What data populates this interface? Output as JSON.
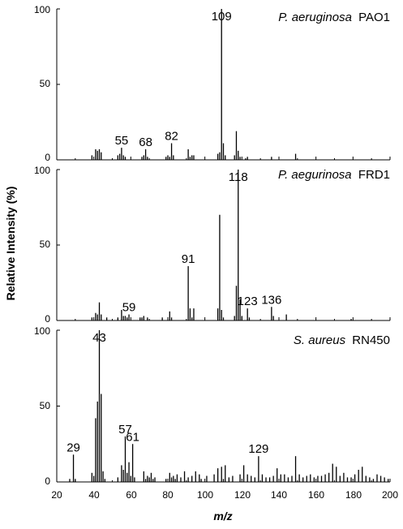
{
  "chart_data": {
    "type": "bar",
    "xlabel": "m/z",
    "ylabel": "Relative Intensity (%)",
    "xlim": [
      20,
      200
    ],
    "ylim": [
      0,
      100
    ],
    "x_ticks": [
      "20",
      "40",
      "60",
      "80",
      "100",
      "120",
      "140",
      "160",
      "180",
      "200"
    ],
    "y_ticks": [
      "0",
      "50",
      "100"
    ],
    "grid": false,
    "panels": [
      {
        "title_italic": "P. aeruginosa",
        "title_plain": "PAO1",
        "peak_labels": [
          {
            "text": "55",
            "x": 55,
            "y": 8
          },
          {
            "text": "68",
            "x": 68,
            "y": 7
          },
          {
            "text": "82",
            "x": 82,
            "y": 11
          },
          {
            "text": "109",
            "x": 109,
            "y": 100
          }
        ],
        "peaks": [
          [
            39,
            3
          ],
          [
            41,
            7
          ],
          [
            42,
            6
          ],
          [
            43,
            7
          ],
          [
            44,
            5
          ],
          [
            53,
            3
          ],
          [
            54,
            4
          ],
          [
            55,
            8
          ],
          [
            56,
            3
          ],
          [
            57,
            2
          ],
          [
            66,
            2
          ],
          [
            67,
            3
          ],
          [
            68,
            7
          ],
          [
            69,
            2
          ],
          [
            79,
            2
          ],
          [
            80,
            3
          ],
          [
            81,
            2
          ],
          [
            82,
            11
          ],
          [
            83,
            3
          ],
          [
            91,
            7
          ],
          [
            92,
            2
          ],
          [
            93,
            3
          ],
          [
            94,
            3
          ],
          [
            107,
            4
          ],
          [
            108,
            5
          ],
          [
            109,
            100
          ],
          [
            110,
            11
          ],
          [
            111,
            3
          ],
          [
            116,
            3
          ],
          [
            117,
            19
          ],
          [
            118,
            6
          ],
          [
            119,
            2
          ],
          [
            122,
            1
          ],
          [
            123,
            2
          ],
          [
            136,
            2
          ],
          [
            149,
            4
          ]
        ]
      },
      {
        "title_italic": "P. aegurinosa",
        "title_plain": "FRD1",
        "peak_labels": [
          {
            "text": "59",
            "x": 59,
            "y": 4
          },
          {
            "text": "91",
            "x": 91,
            "y": 36
          },
          {
            "text": "118",
            "x": 118,
            "y": 100
          },
          {
            "text": "123",
            "x": 123,
            "y": 8
          },
          {
            "text": "136",
            "x": 136,
            "y": 9
          }
        ],
        "peaks": [
          [
            39,
            2
          ],
          [
            41,
            5
          ],
          [
            42,
            4
          ],
          [
            43,
            12
          ],
          [
            44,
            4
          ],
          [
            47,
            2
          ],
          [
            53,
            2
          ],
          [
            55,
            7
          ],
          [
            56,
            3
          ],
          [
            57,
            3
          ],
          [
            58,
            2
          ],
          [
            59,
            4
          ],
          [
            65,
            2
          ],
          [
            66,
            2
          ],
          [
            67,
            3
          ],
          [
            69,
            2
          ],
          [
            77,
            2
          ],
          [
            81,
            6
          ],
          [
            82,
            2
          ],
          [
            91,
            36
          ],
          [
            92,
            8
          ],
          [
            93,
            2
          ],
          [
            94,
            8
          ],
          [
            107,
            8
          ],
          [
            108,
            70
          ],
          [
            109,
            7
          ],
          [
            110,
            2
          ],
          [
            116,
            3
          ],
          [
            117,
            23
          ],
          [
            118,
            100
          ],
          [
            119,
            14
          ],
          [
            120,
            3
          ],
          [
            123,
            8
          ],
          [
            124,
            2
          ],
          [
            136,
            9
          ],
          [
            137,
            3
          ],
          [
            144,
            4
          ],
          [
            179,
            1
          ]
        ]
      },
      {
        "title_italic": "S. aureus",
        "title_plain": "RN450",
        "peak_labels": [
          {
            "text": "29",
            "x": 29,
            "y": 18
          },
          {
            "text": "43",
            "x": 43,
            "y": 100
          },
          {
            "text": "57",
            "x": 57,
            "y": 30
          },
          {
            "text": "61",
            "x": 61,
            "y": 25
          },
          {
            "text": "129",
            "x": 129,
            "y": 17
          }
        ],
        "peaks": [
          [
            27,
            2
          ],
          [
            29,
            18
          ],
          [
            30,
            2
          ],
          [
            39,
            6
          ],
          [
            40,
            4
          ],
          [
            41,
            42
          ],
          [
            42,
            53
          ],
          [
            43,
            100
          ],
          [
            44,
            58
          ],
          [
            45,
            7
          ],
          [
            46,
            2
          ],
          [
            53,
            3
          ],
          [
            55,
            11
          ],
          [
            56,
            8
          ],
          [
            57,
            30
          ],
          [
            58,
            6
          ],
          [
            59,
            13
          ],
          [
            60,
            4
          ],
          [
            61,
            25
          ],
          [
            62,
            3
          ],
          [
            67,
            7
          ],
          [
            68,
            2
          ],
          [
            69,
            4
          ],
          [
            70,
            3
          ],
          [
            71,
            6
          ],
          [
            72,
            2
          ],
          [
            73,
            3
          ],
          [
            79,
            2
          ],
          [
            81,
            6
          ],
          [
            82,
            3
          ],
          [
            83,
            4
          ],
          [
            84,
            2
          ],
          [
            85,
            5
          ],
          [
            87,
            3
          ],
          [
            89,
            7
          ],
          [
            91,
            3
          ],
          [
            93,
            4
          ],
          [
            95,
            7
          ],
          [
            97,
            5
          ],
          [
            98,
            2
          ],
          [
            101,
            4
          ],
          [
            105,
            5
          ],
          [
            107,
            9
          ],
          [
            109,
            10
          ],
          [
            110,
            2
          ],
          [
            111,
            11
          ],
          [
            113,
            3
          ],
          [
            115,
            4
          ],
          [
            119,
            5
          ],
          [
            121,
            11
          ],
          [
            123,
            5
          ],
          [
            125,
            4
          ],
          [
            127,
            3
          ],
          [
            129,
            17
          ],
          [
            131,
            5
          ],
          [
            133,
            3
          ],
          [
            135,
            3
          ],
          [
            137,
            4
          ],
          [
            139,
            9
          ],
          [
            141,
            5
          ],
          [
            143,
            5
          ],
          [
            145,
            3
          ],
          [
            147,
            4
          ],
          [
            149,
            17
          ],
          [
            151,
            5
          ],
          [
            153,
            3
          ],
          [
            155,
            4
          ],
          [
            157,
            5
          ],
          [
            159,
            3
          ],
          [
            161,
            4
          ],
          [
            163,
            4
          ],
          [
            165,
            5
          ],
          [
            167,
            6
          ],
          [
            169,
            12
          ],
          [
            171,
            10
          ],
          [
            173,
            4
          ],
          [
            175,
            6
          ],
          [
            177,
            3
          ],
          [
            179,
            3
          ],
          [
            181,
            5
          ],
          [
            183,
            8
          ],
          [
            185,
            10
          ],
          [
            187,
            4
          ],
          [
            189,
            3
          ],
          [
            191,
            2
          ],
          [
            193,
            5
          ],
          [
            195,
            4
          ],
          [
            197,
            3
          ],
          [
            199,
            2
          ]
        ]
      }
    ]
  }
}
